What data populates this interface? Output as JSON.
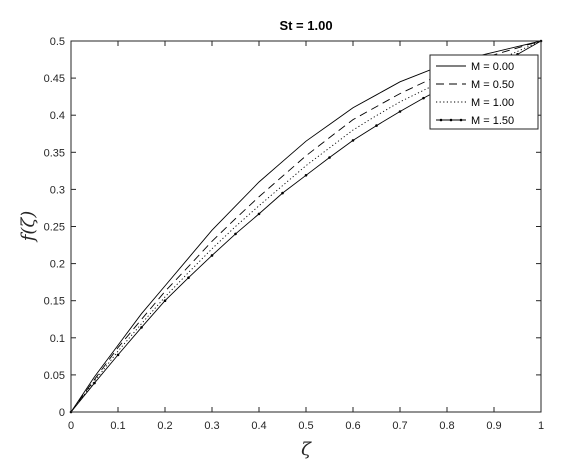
{
  "chart_data": {
    "type": "line",
    "title": "St = 1.00",
    "xlabel": "ζ",
    "ylabel": "f(ζ)",
    "xlim": [
      0,
      1
    ],
    "ylim": [
      0,
      0.5
    ],
    "xticks": [
      0,
      0.1,
      0.2,
      0.3,
      0.4,
      0.5,
      0.6,
      0.7,
      0.8,
      0.9,
      1
    ],
    "xtick_labels": [
      "0",
      "0.1",
      "0.2",
      "0.3",
      "0.4",
      "0.5",
      "0.6",
      "0.7",
      "0.8",
      "0.9",
      "1"
    ],
    "yticks": [
      0,
      0.05,
      0.1,
      0.15,
      0.2,
      0.25,
      0.3,
      0.35,
      0.4,
      0.45,
      0.5
    ],
    "ytick_labels": [
      "0",
      "0.05",
      "0.1",
      "0.15",
      "0.2",
      "0.25",
      "0.3",
      "0.35",
      "0.4",
      "0.45",
      "0.5"
    ],
    "grid": false,
    "legend_position": "top-right",
    "x": [
      0,
      0.05,
      0.1,
      0.15,
      0.2,
      0.25,
      0.3,
      0.35,
      0.4,
      0.45,
      0.5,
      0.55,
      0.6,
      0.65,
      0.7,
      0.75,
      0.8,
      0.85,
      0.9,
      0.95,
      1
    ],
    "series": [
      {
        "name": "M = 0.00",
        "style": "solid",
        "values": [
          0,
          0.0475,
          0.09,
          0.1325,
          0.17,
          0.2075,
          0.245,
          0.2775,
          0.31,
          0.3375,
          0.365,
          0.3875,
          0.41,
          0.4275,
          0.445,
          0.4575,
          0.47,
          0.4775,
          0.485,
          0.4925,
          0.5
        ]
      },
      {
        "name": "M = 0.50",
        "style": "dashed",
        "values": [
          0,
          0.0439,
          0.0868,
          0.1248,
          0.1625,
          0.1961,
          0.2301,
          0.2606,
          0.2901,
          0.3177,
          0.3453,
          0.3698,
          0.394,
          0.4116,
          0.4291,
          0.4441,
          0.4587,
          0.4701,
          0.4814,
          0.4907,
          0.5
        ]
      },
      {
        "name": "M = 1.00",
        "style": "dotted",
        "values": [
          0,
          0.0415,
          0.082,
          0.119,
          0.155,
          0.188,
          0.22,
          0.25,
          0.278,
          0.305,
          0.332,
          0.356,
          0.38,
          0.3995,
          0.418,
          0.4335,
          0.449,
          0.4605,
          0.472,
          0.486,
          0.5
        ]
      },
      {
        "name": "M = 1.50",
        "style": "solid-dots",
        "values": [
          0,
          0.039,
          0.077,
          0.114,
          0.15,
          0.181,
          0.211,
          0.24,
          0.267,
          0.295,
          0.319,
          0.343,
          0.366,
          0.386,
          0.405,
          0.423,
          0.44,
          0.454,
          0.467,
          0.482,
          0.5
        ]
      }
    ]
  }
}
